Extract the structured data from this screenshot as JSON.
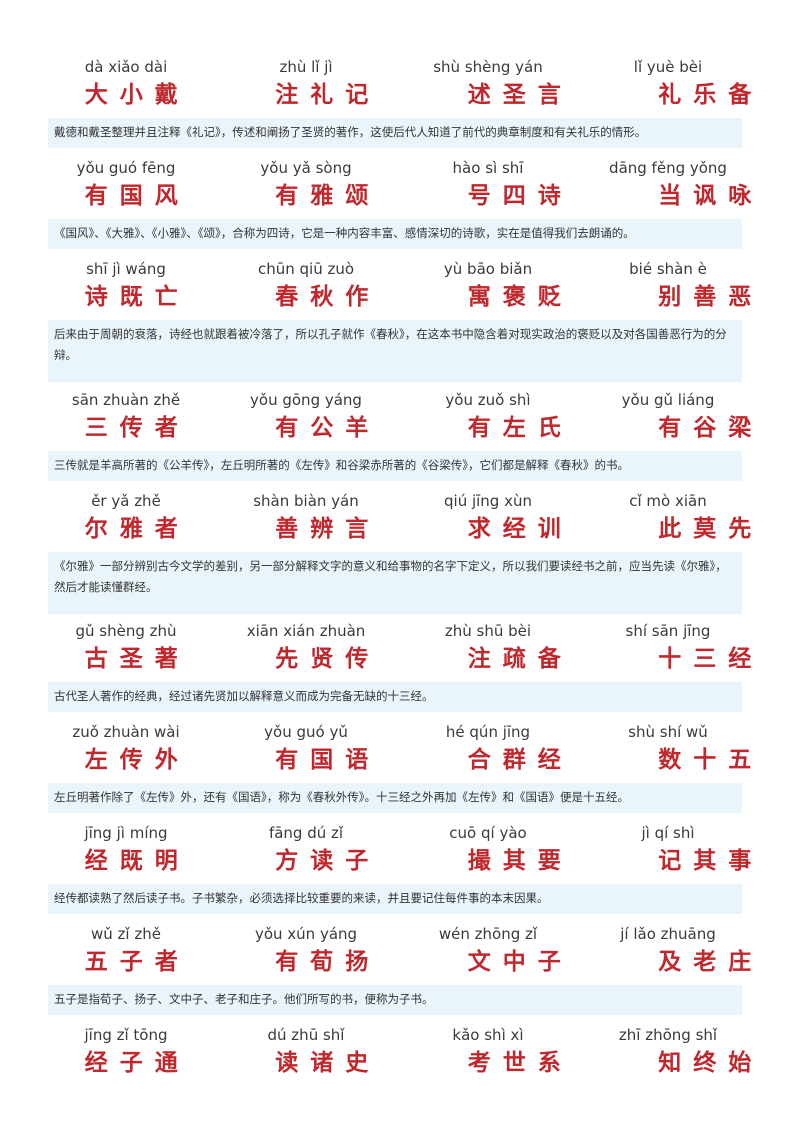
{
  "blocks": [
    {
      "phrases": [
        {
          "pinyin": "dà  xiǎo  dài",
          "hanzi": "大小戴"
        },
        {
          "pinyin": "zhù  lǐ  jì",
          "hanzi": "注礼记"
        },
        {
          "pinyin": "shù  shèng  yán",
          "hanzi": "述圣言"
        },
        {
          "pinyin": "lǐ  yuè  bèi",
          "hanzi": "礼乐备"
        }
      ],
      "note": "戴德和戴圣整理并且注释《礼记》，传述和阐扬了圣贤的著作，这使后代人知道了前代的典章制度和有关礼乐的情形。"
    },
    {
      "phrases": [
        {
          "pinyin": "yǒu guó  fēng",
          "hanzi": "有国风"
        },
        {
          "pinyin": "yǒu yǎ  sòng",
          "hanzi": "有雅颂"
        },
        {
          "pinyin": "hào  sì  shī",
          "hanzi": "号四诗"
        },
        {
          "pinyin": "dāng fěng yǒng",
          "hanzi": "当讽咏"
        }
      ],
      "note": "《国风》、《大雅》、《小雅》、《颂》，合称为四诗，它是一种内容丰富、感情深切的诗歌，实在是值得我们去朗诵的。"
    },
    {
      "phrases": [
        {
          "pinyin": "shī  jì  wáng",
          "hanzi": "诗既亡"
        },
        {
          "pinyin": "chūn  qiū  zuò",
          "hanzi": "春秋作"
        },
        {
          "pinyin": "yù  bāo  biǎn",
          "hanzi": "寓褒贬"
        },
        {
          "pinyin": "bié  shàn  è",
          "hanzi": "别善恶"
        }
      ],
      "note": "后来由于周朝的衰落，诗经也就跟着被冷落了，所以孔子就作《春秋》，在这本书中隐含着对现实政治的褒贬以及对各国善恶行为的分辩。"
    },
    {
      "phrases": [
        {
          "pinyin": "sān  zhuàn  zhě",
          "hanzi": "三传者"
        },
        {
          "pinyin": "yǒu  gōng  yáng",
          "hanzi": "有公羊"
        },
        {
          "pinyin": "yǒu  zuǒ  shì",
          "hanzi": "有左氏"
        },
        {
          "pinyin": "yǒu  gǔ  liáng",
          "hanzi": "有谷梁"
        }
      ],
      "note": "三传就是羊高所著的《公羊传》，左丘明所著的《左传》和谷梁赤所著的《谷梁传》，它们都是解释《春秋》的书。"
    },
    {
      "phrases": [
        {
          "pinyin": "ěr  yǎ  zhě",
          "hanzi": "尔雅者"
        },
        {
          "pinyin": "shàn  biàn  yán",
          "hanzi": "善辨言"
        },
        {
          "pinyin": "qiú  jīng  xùn",
          "hanzi": "求经训"
        },
        {
          "pinyin": "cǐ  mò  xiān",
          "hanzi": "此莫先"
        }
      ],
      "note": "《尔雅》一部分辨别古今文学的差别，另一部分解释文字的意义和给事物的名字下定义，所以我们要读经书之前，应当先读《尔雅》，然后才能读懂群经。"
    },
    {
      "phrases": [
        {
          "pinyin": "gǔ  shèng  zhù",
          "hanzi": "古圣著"
        },
        {
          "pinyin": "xiān  xián  zhuàn",
          "hanzi": "先贤传"
        },
        {
          "pinyin": "zhù  shū  bèi",
          "hanzi": "注疏备"
        },
        {
          "pinyin": "shí  sān  jīng",
          "hanzi": "十三经"
        }
      ],
      "note": "古代圣人著作的经典，经过诸先贤加以解释意义而成为完备无缺的十三经。"
    },
    {
      "phrases": [
        {
          "pinyin": "zuǒ  zhuàn  wài",
          "hanzi": "左传外"
        },
        {
          "pinyin": "yǒu  guó  yǔ",
          "hanzi": "有国语"
        },
        {
          "pinyin": "hé  qún  jīng",
          "hanzi": "合群经"
        },
        {
          "pinyin": "shù  shí  wǔ",
          "hanzi": "数十五"
        }
      ],
      "note": "左丘明著作除了《左传》外，还有《国语》，称为《春秋外传》。十三经之外再加《左传》和《国语》便是十五经。"
    },
    {
      "phrases": [
        {
          "pinyin": "jīng  jì  míng",
          "hanzi": "经既明"
        },
        {
          "pinyin": "fāng  dú  zǐ",
          "hanzi": "方读子"
        },
        {
          "pinyin": "cuō  qí  yào",
          "hanzi": "撮其要"
        },
        {
          "pinyin": "jì  qí  shì",
          "hanzi": "记其事"
        }
      ],
      "note": "经传都读熟了然后读子书。子书繁杂，必须选择比较重要的来读，并且要记住每件事的本末因果。"
    },
    {
      "phrases": [
        {
          "pinyin": "wǔ  zǐ  zhě",
          "hanzi": "五子者"
        },
        {
          "pinyin": "yǒu  xún  yáng",
          "hanzi": "有荀扬"
        },
        {
          "pinyin": "wén  zhōng  zǐ",
          "hanzi": "文中子"
        },
        {
          "pinyin": "jí  lǎo  zhuāng",
          "hanzi": "及老庄"
        }
      ],
      "note": "五子是指荀子、扬子、文中子、老子和庄子。他们所写的书，便称为子书。"
    },
    {
      "phrases": [
        {
          "pinyin": "jīng  zǐ  tōng",
          "hanzi": "经子通"
        },
        {
          "pinyin": "dú  zhū  shǐ",
          "hanzi": "读诸史"
        },
        {
          "pinyin": "kǎo  shì  xì",
          "hanzi": "考世系"
        },
        {
          "pinyin": "zhī  zhōng  shǐ",
          "hanzi": "知终始"
        }
      ],
      "note": ""
    }
  ]
}
